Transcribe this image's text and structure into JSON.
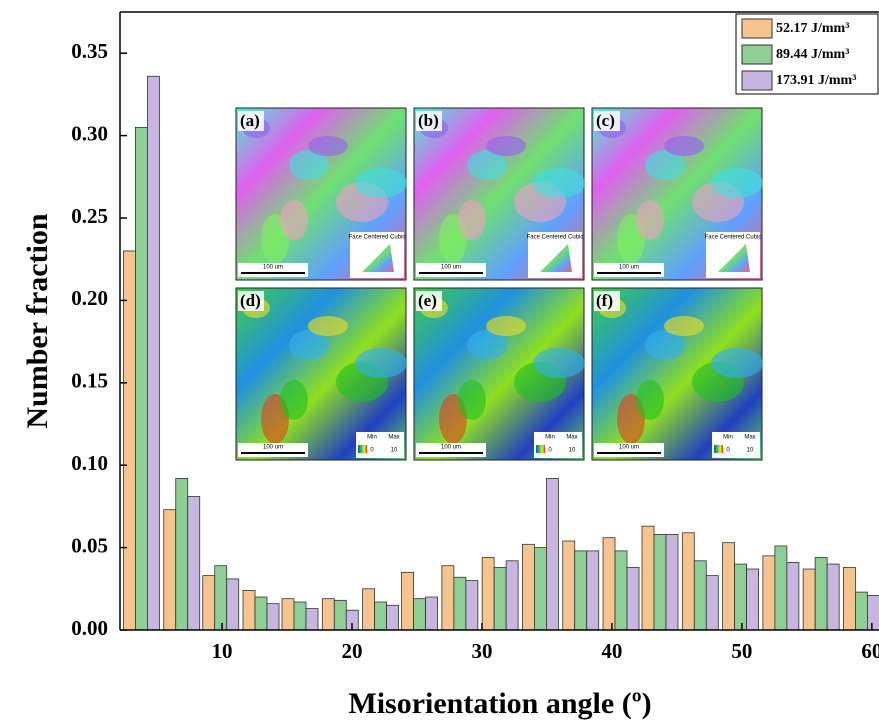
{
  "chart_data": {
    "type": "bar",
    "x_label": "Misorientation angle (º)",
    "y_label": "Number fraction",
    "x": [
      3.8,
      6.9,
      9.9,
      13.0,
      16.0,
      19.1,
      22.2,
      25.2,
      28.3,
      31.4,
      34.5,
      37.6,
      40.7,
      43.7,
      46.8,
      49.9,
      53.0,
      56.1,
      59.2
    ],
    "series": [
      {
        "name": "52.17 J/mm³",
        "color": "#f5c48f",
        "values": [
          0.23,
          0.073,
          0.033,
          0.024,
          0.019,
          0.019,
          0.025,
          0.035,
          0.039,
          0.044,
          0.052,
          0.054,
          0.056,
          0.063,
          0.059,
          0.053,
          0.045,
          0.037,
          0.038
        ]
      },
      {
        "name": "89.44 J/mm³",
        "color": "#8fcf95",
        "values": [
          0.305,
          0.092,
          0.039,
          0.02,
          0.017,
          0.018,
          0.017,
          0.019,
          0.032,
          0.038,
          0.05,
          0.048,
          0.048,
          0.058,
          0.042,
          0.04,
          0.051,
          0.044,
          0.023
        ]
      },
      {
        "name": "173.91 J/mm³",
        "color": "#c8b5e0",
        "values": [
          0.336,
          0.081,
          0.031,
          0.016,
          0.013,
          0.012,
          0.015,
          0.02,
          0.03,
          0.042,
          0.092,
          0.048,
          0.038,
          0.058,
          0.033,
          0.037,
          0.041,
          0.04,
          0.021
        ]
      }
    ],
    "xlim": [
      2.15,
      60.55
    ],
    "ylim": [
      0,
      0.375
    ],
    "xticks": [
      10,
      20,
      30,
      40,
      50,
      60
    ],
    "yticks": [
      {
        "value": 0,
        "label": "0.00"
      },
      {
        "value": 0.05,
        "label": "0.05"
      },
      {
        "value": 0.1,
        "label": "0.10"
      },
      {
        "value": 0.15,
        "label": "0.15"
      },
      {
        "value": 0.2,
        "label": "0.20"
      },
      {
        "value": 0.25,
        "label": "0.25"
      },
      {
        "value": 0.3,
        "label": "0.30"
      },
      {
        "value": 0.35,
        "label": "0.35"
      }
    ],
    "legend": "upper right",
    "insets": [
      {
        "label": "(a)",
        "scale_bar": "100 um",
        "key": "Face Centered Cubic"
      },
      {
        "label": "(b)",
        "scale_bar": "100 um",
        "key": "Face Centered Cubic"
      },
      {
        "label": "(c)",
        "scale_bar": "100 um",
        "key": "Face Centered Cubic"
      },
      {
        "label": "(d)",
        "scale_bar": "100 um",
        "key_min": "Min",
        "key_max": "Max",
        "min": "0",
        "max": "10"
      },
      {
        "label": "(e)",
        "scale_bar": "100 um",
        "key_min": "Min",
        "key_max": "Max",
        "min": "0",
        "max": "10"
      },
      {
        "label": "(f)",
        "scale_bar": "100 um",
        "key_min": "Min",
        "key_max": "Max",
        "min": "0",
        "max": "10"
      }
    ]
  }
}
